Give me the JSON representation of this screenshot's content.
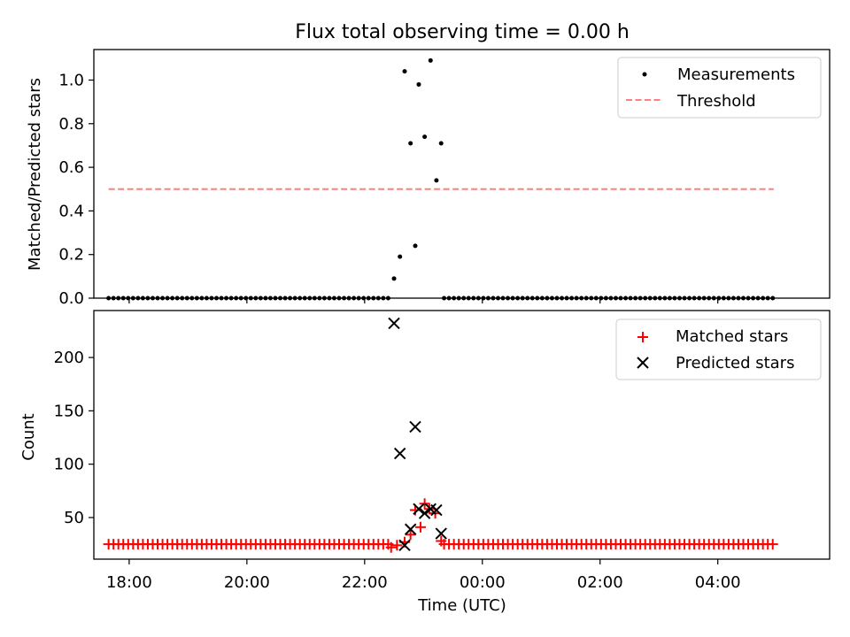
{
  "chart_data": [
    {
      "type": "scatter",
      "title": "Flux total observing time = 0.00 h",
      "xlabel": "",
      "ylabel": "Matched/Predicted stars",
      "xlim": [
        17.4,
        5.9
      ],
      "ylim": [
        0.0,
        1.14
      ],
      "yticks": [
        0.0,
        0.2,
        0.4,
        0.6,
        0.8,
        1.0
      ],
      "ytick_labels": [
        "0.0",
        "0.2",
        "0.4",
        "0.6",
        "0.8",
        "1.0"
      ],
      "legend": {
        "position": "top-right",
        "entries": [
          "Measurements",
          "Threshold"
        ]
      },
      "threshold": {
        "name": "Threshold",
        "value": 0.5,
        "x_start": 17.65,
        "x_end": 4.95,
        "color": "#ff7f7f"
      },
      "series": [
        {
          "name": "Measurements",
          "color": "#000000",
          "x": [
            22.5,
            22.6,
            22.68,
            22.78,
            22.86,
            22.92,
            23.02,
            23.12,
            23.22,
            23.3
          ],
          "y": [
            0.09,
            0.19,
            1.04,
            0.71,
            0.24,
            0.98,
            0.74,
            1.09,
            0.54,
            0.71
          ]
        }
      ],
      "baseline": {
        "value": 0.0,
        "x_start": 17.65,
        "x_end": 22.4,
        "x_start2": 23.35,
        "x_end2": 4.95,
        "step_minutes": 5
      }
    },
    {
      "type": "scatter",
      "title": "",
      "xlabel": "Time (UTC)",
      "ylabel": "Count",
      "xlim": [
        17.4,
        5.9
      ],
      "ylim": [
        11,
        244
      ],
      "yticks": [
        50,
        100,
        150,
        200
      ],
      "ytick_labels": [
        "50",
        "100",
        "150",
        "200"
      ],
      "xticks": [
        18,
        20,
        22,
        0,
        2,
        4
      ],
      "xtick_labels": [
        "18:00",
        "20:00",
        "22:00",
        "00:00",
        "02:00",
        "04:00"
      ],
      "legend": {
        "position": "top-right",
        "entries": [
          "Matched stars",
          "Predicted stars"
        ]
      },
      "series": [
        {
          "name": "Matched stars",
          "marker": "plus",
          "color": "#ff0000",
          "x": [
            22.45,
            22.55,
            22.68,
            22.78,
            22.86,
            22.95,
            23.02,
            23.1,
            23.2,
            23.3
          ],
          "y": [
            22,
            24,
            27,
            34,
            57,
            41,
            63,
            58,
            54,
            28
          ]
        },
        {
          "name": "Predicted stars",
          "marker": "x",
          "color": "#000000",
          "x": [
            22.5,
            22.6,
            22.68,
            22.78,
            22.86,
            22.92,
            23.02,
            23.12,
            23.22,
            23.3
          ],
          "y": [
            232,
            110,
            24,
            39,
            135,
            58,
            54,
            58,
            57,
            35
          ]
        }
      ],
      "baseline": {
        "value": 25,
        "x_start": 17.65,
        "x_end": 22.4,
        "x_start2": 23.35,
        "x_end2": 4.95,
        "step_minutes": 5
      }
    }
  ]
}
